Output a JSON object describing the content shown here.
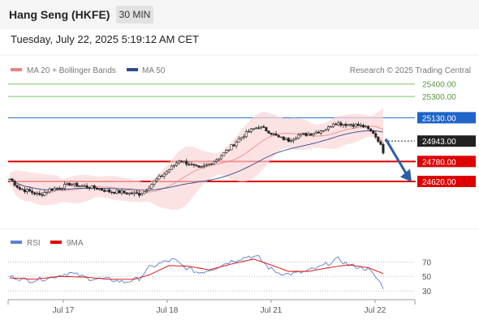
{
  "header": {
    "title": "Hang Seng (HKFE)",
    "timeframe": "30 MIN",
    "datetime": "Tuesday, July 22, 2025 5:19:12 AM CET"
  },
  "credit": "Research © 2025 Trading Central",
  "colors": {
    "resistance": "#7cc26a",
    "pivot": "#1f64c8",
    "support": "#dd0000",
    "current": "#222222",
    "ma20": "#f08080",
    "ma50": "#2a4d8f",
    "band_fill": "#fbd6d6",
    "rsi": "#5b7fd4",
    "rsi_ma": "#dd0000",
    "arrow": "#2c5fa8",
    "bull_candle": "#ffffff",
    "bear_candle": "#222222"
  },
  "chart_data": [
    {
      "type": "candlestick",
      "legend": [
        {
          "name": "MA 20 + Bollinger Bands",
          "color": "#f08080"
        },
        {
          "name": "MA 50",
          "color": "#2a4d8f"
        }
      ],
      "ylim": [
        24380,
        25450
      ],
      "x_labels": [
        "Jul 17",
        "Jul 18",
        "Jul 21",
        "Jul 22"
      ],
      "levels": [
        {
          "value": 25400,
          "label": "25400.00",
          "kind": "resistance"
        },
        {
          "value": 25300,
          "label": "25300.00",
          "kind": "resistance"
        },
        {
          "value": 25130,
          "label": "25130.00",
          "kind": "pivot"
        },
        {
          "value": 24943,
          "label": "24943.00",
          "kind": "current"
        },
        {
          "value": 24780,
          "label": "24780.00",
          "kind": "support"
        },
        {
          "value": 24620,
          "label": "24620.00",
          "kind": "support"
        }
      ],
      "forecast_arrow": {
        "from": 24960,
        "to": 24630,
        "direction": "down"
      },
      "close_path": [
        [
          0,
          24640
        ],
        [
          4,
          24560
        ],
        [
          8,
          24540
        ],
        [
          12,
          24510
        ],
        [
          16,
          24555
        ],
        [
          20,
          24570
        ],
        [
          24,
          24600
        ],
        [
          28,
          24585
        ],
        [
          32,
          24575
        ],
        [
          36,
          24560
        ],
        [
          40,
          24540
        ],
        [
          44,
          24535
        ],
        [
          48,
          24525
        ],
        [
          52,
          24520
        ],
        [
          54,
          24540
        ],
        [
          58,
          24620
        ],
        [
          62,
          24680
        ],
        [
          66,
          24750
        ],
        [
          68,
          24790
        ],
        [
          72,
          24760
        ],
        [
          76,
          24720
        ],
        [
          80,
          24760
        ],
        [
          84,
          24810
        ],
        [
          88,
          24880
        ],
        [
          92,
          24960
        ],
        [
          96,
          25020
        ],
        [
          100,
          25060
        ],
        [
          104,
          25020
        ],
        [
          108,
          24970
        ],
        [
          112,
          24950
        ],
        [
          116,
          24990
        ],
        [
          120,
          25000
        ],
        [
          124,
          25020
        ],
        [
          128,
          25050
        ],
        [
          130,
          25090
        ],
        [
          134,
          25080
        ],
        [
          138,
          25075
        ],
        [
          142,
          25060
        ],
        [
          146,
          25010
        ],
        [
          148,
          24950
        ],
        [
          150,
          24860
        ]
      ]
    },
    {
      "type": "line",
      "legend": [
        {
          "name": "RSI",
          "color": "#5b7fd4"
        },
        {
          "name": "9MA",
          "color": "#dd0000"
        }
      ],
      "ylim": [
        20,
        85
      ],
      "y_ticks": [
        70,
        50,
        30
      ],
      "rsi_path": [
        [
          0,
          50
        ],
        [
          8,
          44
        ],
        [
          16,
          48
        ],
        [
          24,
          55
        ],
        [
          32,
          47
        ],
        [
          40,
          46
        ],
        [
          46,
          42
        ],
        [
          52,
          47
        ],
        [
          56,
          62
        ],
        [
          62,
          70
        ],
        [
          66,
          73
        ],
        [
          70,
          63
        ],
        [
          76,
          55
        ],
        [
          82,
          61
        ],
        [
          88,
          70
        ],
        [
          92,
          74
        ],
        [
          96,
          78
        ],
        [
          100,
          76
        ],
        [
          104,
          62
        ],
        [
          108,
          55
        ],
        [
          112,
          53
        ],
        [
          118,
          56
        ],
        [
          124,
          62
        ],
        [
          128,
          68
        ],
        [
          132,
          74
        ],
        [
          136,
          66
        ],
        [
          140,
          63
        ],
        [
          144,
          60
        ],
        [
          148,
          45
        ],
        [
          150,
          35
        ]
      ],
      "ma_path": [
        [
          0,
          48
        ],
        [
          10,
          46
        ],
        [
          20,
          50
        ],
        [
          30,
          49
        ],
        [
          40,
          46
        ],
        [
          50,
          46
        ],
        [
          56,
          52
        ],
        [
          64,
          65
        ],
        [
          72,
          64
        ],
        [
          80,
          59
        ],
        [
          90,
          68
        ],
        [
          98,
          74
        ],
        [
          104,
          67
        ],
        [
          112,
          57
        ],
        [
          120,
          57
        ],
        [
          128,
          62
        ],
        [
          136,
          66
        ],
        [
          144,
          62
        ],
        [
          150,
          54
        ]
      ]
    }
  ]
}
